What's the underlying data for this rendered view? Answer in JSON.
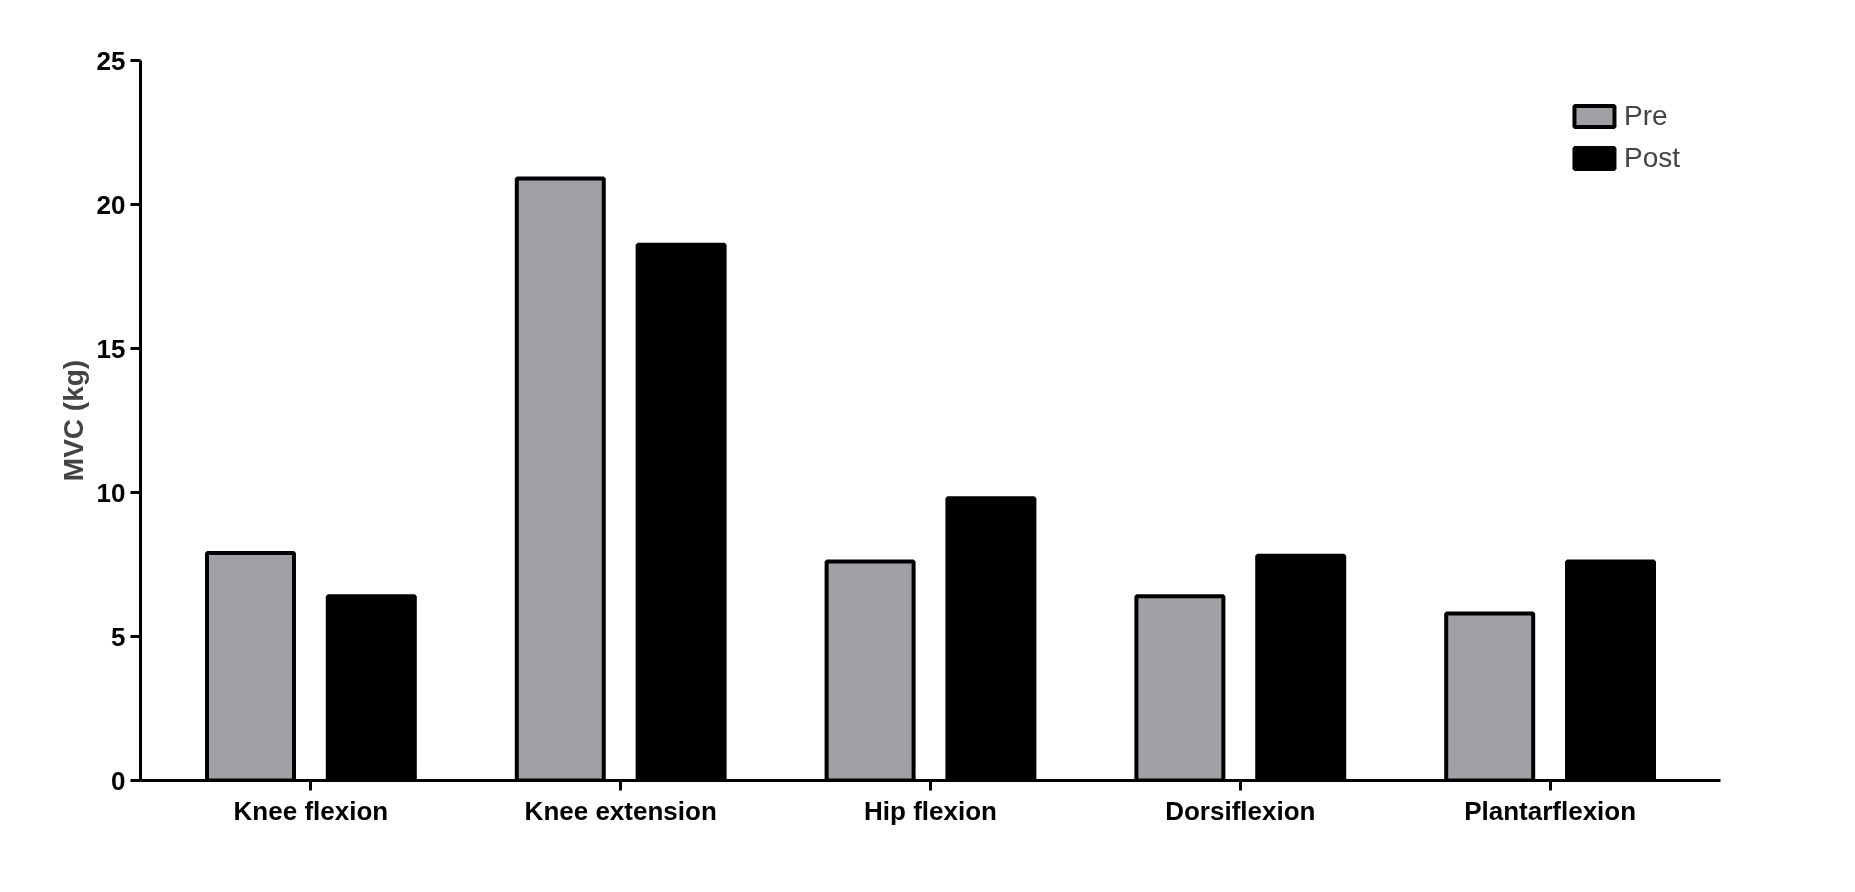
{
  "chart_data": {
    "type": "bar",
    "ylabel": "MVC (kg)",
    "categories": [
      "Knee flexion",
      "Knee extension",
      "Hip flexion",
      "Dorsiflexion",
      "Plantarflexion"
    ],
    "series": [
      {
        "name": "Pre",
        "color": "#a1a0a5",
        "values": [
          7.9,
          20.9,
          7.6,
          6.4,
          5.8
        ]
      },
      {
        "name": "Post",
        "color": "#000000",
        "values": [
          6.4,
          18.6,
          9.8,
          7.8,
          7.6
        ]
      }
    ],
    "ylim": [
      0,
      25
    ],
    "yticks": [
      0,
      5,
      10,
      15,
      20,
      25
    ],
    "grid": false,
    "legend": "top right"
  }
}
